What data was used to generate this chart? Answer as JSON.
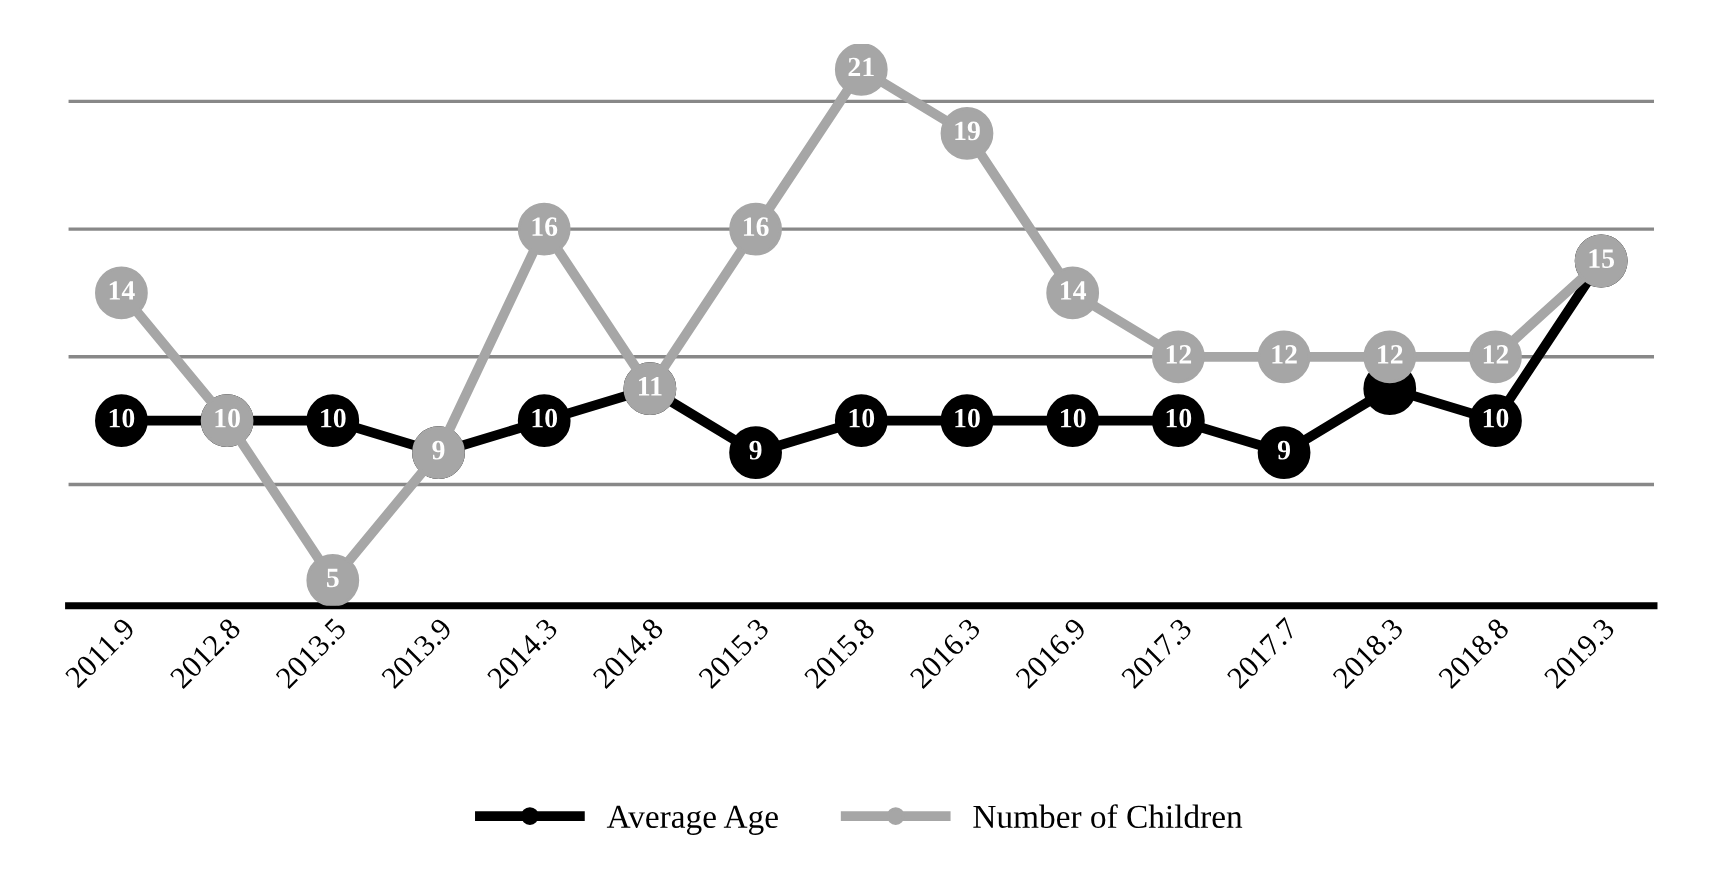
{
  "chart_data": {
    "type": "line",
    "categories": [
      "2011.9",
      "2012.8",
      "2013.5",
      "2013.9",
      "2014.3",
      "2014.8",
      "2015.3",
      "2015.8",
      "2016.3",
      "2016.9",
      "2017.3",
      "2017.7",
      "2018.3",
      "2018.8",
      "2019.3"
    ],
    "series": [
      {
        "name": "Average Age",
        "color": "#000000",
        "values": [
          10,
          10,
          10,
          9,
          10,
          11,
          9,
          10,
          10,
          10,
          10,
          9,
          11,
          10,
          15
        ],
        "value_labels": [
          "10",
          null,
          "10",
          null,
          "10",
          null,
          "9",
          "10",
          "10",
          "10",
          "10",
          "9",
          null,
          "10",
          null
        ]
      },
      {
        "name": "Number of Children",
        "color": "#a6a6a6",
        "values": [
          14,
          10,
          5,
          9,
          16,
          11,
          16,
          21,
          19,
          14,
          12,
          12,
          12,
          12,
          15
        ],
        "value_labels": [
          "14",
          "10",
          "5",
          "9",
          "16",
          "11",
          "16",
          "21",
          "19",
          "14",
          "12",
          "12",
          "12",
          "12",
          "15"
        ]
      }
    ],
    "tick_labels": "x",
    "grid": "y",
    "legend": "bottom",
    "marker": "circle",
    "line_style": "solid"
  }
}
